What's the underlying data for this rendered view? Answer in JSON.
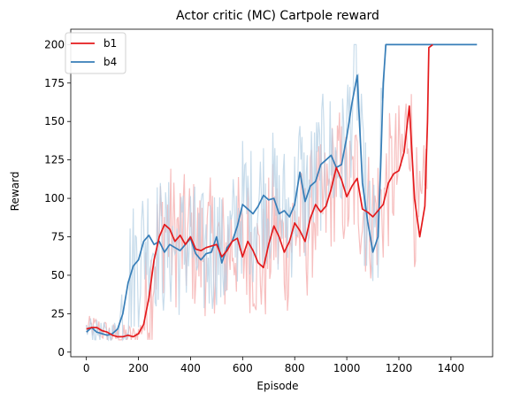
{
  "chart_data": {
    "type": "line",
    "title": "Actor critic (MC) Cartpole reward",
    "xlabel": "Episode",
    "ylabel": "Reward",
    "xlim": [
      -60,
      1560
    ],
    "ylim": [
      -3,
      210
    ],
    "xticks": [
      0,
      200,
      400,
      600,
      800,
      1000,
      1200,
      1400
    ],
    "yticks": [
      0,
      25,
      50,
      75,
      100,
      125,
      150,
      175,
      200
    ],
    "grid": false,
    "legend_position": "top-left",
    "series": [
      {
        "name": "b1",
        "color": "#e41a1c",
        "raw_color": "#f4a9aa",
        "x": [
          0,
          20,
          40,
          60,
          80,
          100,
          120,
          140,
          160,
          180,
          200,
          220,
          240,
          260,
          280,
          300,
          320,
          340,
          360,
          380,
          400,
          420,
          440,
          460,
          480,
          500,
          520,
          540,
          560,
          580,
          600,
          620,
          640,
          660,
          680,
          700,
          720,
          740,
          760,
          780,
          800,
          820,
          840,
          860,
          880,
          900,
          920,
          940,
          960,
          980,
          1000,
          1020,
          1040,
          1060,
          1080,
          1100,
          1120,
          1140,
          1160,
          1180,
          1200,
          1220,
          1240,
          1260,
          1280,
          1300,
          1310,
          1315,
          1330
        ],
        "values": [
          15,
          16,
          16,
          14,
          13,
          11,
          10,
          10,
          11,
          10,
          12,
          18,
          35,
          60,
          75,
          83,
          80,
          72,
          76,
          70,
          75,
          67,
          66,
          68,
          69,
          70,
          62,
          66,
          72,
          74,
          62,
          72,
          66,
          58,
          55,
          70,
          82,
          75,
          65,
          72,
          84,
          79,
          72,
          87,
          96,
          91,
          95,
          106,
          120,
          112,
          101,
          108,
          113,
          93,
          91,
          88,
          92,
          96,
          110,
          116,
          118,
          130,
          160,
          100,
          75,
          95,
          150,
          198,
          200
        ]
      },
      {
        "name": "b4",
        "color": "#377eb8",
        "raw_color": "#b5d0e4",
        "x": [
          0,
          20,
          40,
          60,
          80,
          100,
          120,
          140,
          160,
          180,
          200,
          220,
          240,
          260,
          280,
          300,
          320,
          340,
          360,
          380,
          400,
          420,
          440,
          460,
          480,
          500,
          520,
          540,
          560,
          580,
          600,
          620,
          640,
          660,
          680,
          700,
          720,
          740,
          760,
          780,
          800,
          820,
          840,
          860,
          880,
          900,
          920,
          940,
          960,
          980,
          1000,
          1020,
          1040,
          1060,
          1080,
          1100,
          1120,
          1130,
          1140,
          1150,
          1200,
          1300,
          1400,
          1500
        ],
        "values": [
          13,
          16,
          13,
          12,
          11,
          12,
          15,
          25,
          45,
          56,
          60,
          72,
          76,
          70,
          72,
          65,
          70,
          68,
          66,
          70,
          74,
          64,
          60,
          64,
          65,
          75,
          58,
          68,
          72,
          82,
          96,
          93,
          90,
          95,
          102,
          99,
          100,
          90,
          92,
          88,
          96,
          117,
          98,
          108,
          111,
          122,
          125,
          128,
          120,
          122,
          140,
          162,
          180,
          110,
          85,
          65,
          75,
          120,
          175,
          200,
          200,
          200,
          200,
          200
        ]
      }
    ]
  }
}
